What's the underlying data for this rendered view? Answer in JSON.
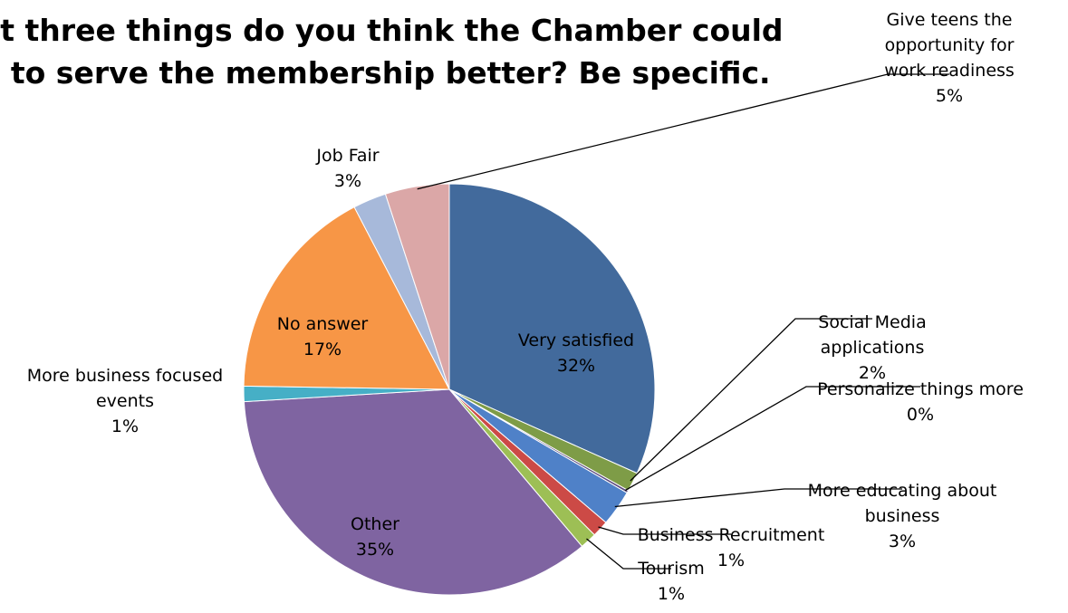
{
  "chart_data": {
    "type": "pie",
    "title_lines": [
      "at three things do you think the Chamber could",
      "e to serve the membership better? Be specific."
    ],
    "slices": [
      {
        "name": "Very satisfied",
        "label_lines": [
          "Very satisfied"
        ],
        "percent_label": "32%",
        "value": 31.5,
        "color": "#426a9c"
      },
      {
        "name": "Social Media applications",
        "label_lines": [
          "Social Media",
          "applications"
        ],
        "percent_label": "2%",
        "value": 1.5,
        "color": "#7e9c47"
      },
      {
        "name": "Personalize things more",
        "label_lines": [
          "Personalize things more"
        ],
        "percent_label": "0%",
        "value": 0.2,
        "color": "#5b4a7e"
      },
      {
        "name": "More educating about business",
        "label_lines": [
          "More educating about",
          "business"
        ],
        "percent_label": "3%",
        "value": 2.8,
        "color": "#4f81c8"
      },
      {
        "name": "Business Recruitment",
        "label_lines": [
          "Business Recruitment"
        ],
        "percent_label": "1%",
        "value": 1.3,
        "color": "#cc4a46"
      },
      {
        "name": "Tourism",
        "label_lines": [
          "Tourism"
        ],
        "percent_label": "1%",
        "value": 1.3,
        "color": "#9dbf55"
      },
      {
        "name": "Other",
        "label_lines": [
          "Other"
        ],
        "percent_label": "35%",
        "value": 35.0,
        "color": "#7f64a1"
      },
      {
        "name": "More business focused events",
        "label_lines": [
          "More business focused",
          "events"
        ],
        "percent_label": "1%",
        "value": 1.2,
        "color": "#46afc6"
      },
      {
        "name": "No answer",
        "label_lines": [
          "No answer"
        ],
        "percent_label": "17%",
        "value": 17.0,
        "color": "#f79646"
      },
      {
        "name": "Job Fair",
        "label_lines": [
          "Job Fair"
        ],
        "percent_label": "3%",
        "value": 2.6,
        "color": "#a7b9da"
      },
      {
        "name": "Give teens the opportunity for work readiness",
        "label_lines": [
          "Give teens the",
          "opportunity for",
          "work readiness"
        ],
        "percent_label": "5%",
        "value": 5.0,
        "color": "#dba7a7"
      }
    ],
    "start_angle_deg": 0,
    "direction": "clockwise",
    "legend": "none"
  }
}
